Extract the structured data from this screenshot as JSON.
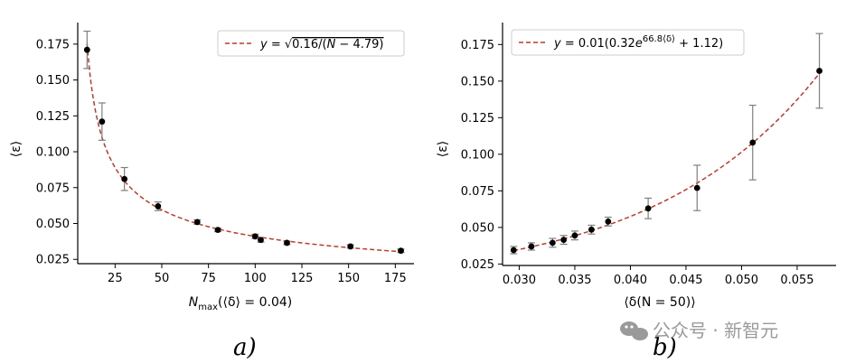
{
  "chart_data": [
    {
      "type": "scatter",
      "xlabel": "N",
      "xlabel_sub": "max",
      "xlabel_rest": "(⟨δ⟩ = 0.04)",
      "ylabel": "⟨ε⟩",
      "xlim": [
        5,
        185
      ],
      "ylim": [
        0.022,
        0.19
      ],
      "xticks": [
        25,
        50,
        75,
        100,
        125,
        150,
        175
      ],
      "xtick_labels": [
        "25",
        "50",
        "75",
        "100",
        "125",
        "150",
        "175"
      ],
      "yticks": [
        0.025,
        0.05,
        0.075,
        0.1,
        0.125,
        0.15,
        0.175
      ],
      "ytick_labels": [
        "0.025",
        "0.050",
        "0.075",
        "0.100",
        "0.125",
        "0.150",
        "0.175"
      ],
      "points": [
        {
          "x": 10,
          "y": 0.171,
          "err": 0.013
        },
        {
          "x": 18,
          "y": 0.121,
          "err": 0.013
        },
        {
          "x": 30,
          "y": 0.081,
          "err": 0.008
        },
        {
          "x": 48,
          "y": 0.062,
          "err": 0.003
        },
        {
          "x": 69,
          "y": 0.051,
          "err": 0.0015
        },
        {
          "x": 80,
          "y": 0.0455,
          "err": 0.0012
        },
        {
          "x": 100,
          "y": 0.041,
          "err": 0.0015
        },
        {
          "x": 103,
          "y": 0.0385,
          "err": 0.0015
        },
        {
          "x": 117,
          "y": 0.0365,
          "err": 0.0012
        },
        {
          "x": 151,
          "y": 0.034,
          "err": 0.0012
        },
        {
          "x": 178,
          "y": 0.031,
          "err": 0.0012
        }
      ],
      "fit": {
        "label": "y = √0.16/(N − 4.79)",
        "color": "#c0392b"
      },
      "legend_position": "top-right",
      "grid": false,
      "panel_label": "a)"
    },
    {
      "type": "scatter",
      "xlabel": "⟨δ(N = 50)⟩",
      "ylabel": "⟨ε⟩",
      "xlim": [
        0.0285,
        0.0585
      ],
      "ylim": [
        0.024,
        0.19
      ],
      "xticks": [
        0.03,
        0.035,
        0.04,
        0.045,
        0.05,
        0.055
      ],
      "xtick_labels": [
        "0.030",
        "0.035",
        "0.040",
        "0.045",
        "0.050",
        "0.055"
      ],
      "yticks": [
        0.025,
        0.05,
        0.075,
        0.1,
        0.125,
        0.15,
        0.175
      ],
      "ytick_labels": [
        "0.025",
        "0.050",
        "0.075",
        "0.100",
        "0.125",
        "0.150",
        "0.175"
      ],
      "points": [
        {
          "x": 0.0295,
          "y": 0.0345,
          "err": 0.0025
        },
        {
          "x": 0.0311,
          "y": 0.037,
          "err": 0.0025
        },
        {
          "x": 0.033,
          "y": 0.0395,
          "err": 0.003
        },
        {
          "x": 0.034,
          "y": 0.0415,
          "err": 0.003
        },
        {
          "x": 0.035,
          "y": 0.0445,
          "err": 0.003
        },
        {
          "x": 0.0365,
          "y": 0.0485,
          "err": 0.003
        },
        {
          "x": 0.038,
          "y": 0.054,
          "err": 0.003
        },
        {
          "x": 0.0416,
          "y": 0.063,
          "err": 0.007
        },
        {
          "x": 0.046,
          "y": 0.077,
          "err": 0.0155
        },
        {
          "x": 0.051,
          "y": 0.108,
          "err": 0.0255
        },
        {
          "x": 0.057,
          "y": 0.157,
          "err": 0.0255
        }
      ],
      "fit": {
        "label": "y = 0.01(0.32e^{66.8⟨δ⟩} + 1.12)",
        "color": "#c0392b"
      },
      "legend_position": "top-left",
      "grid": false,
      "panel_label": "b)"
    }
  ],
  "watermark": "公众号 · 新智元",
  "colors": {
    "points": "#000000",
    "errorbars": "#7f7f7f",
    "fit": "#c0392b",
    "legend_border": "#cccccc"
  }
}
